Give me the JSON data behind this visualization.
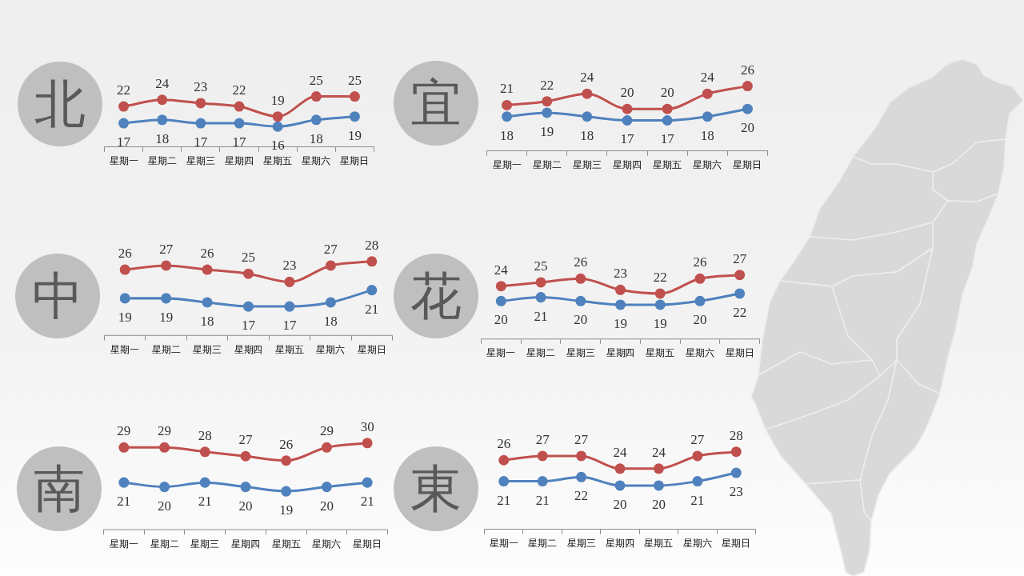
{
  "chart_data": [
    {
      "type": "line",
      "title": "北",
      "categories": [
        "星期一",
        "星期二",
        "星期三",
        "星期四",
        "星期五",
        "星期六",
        "星期日"
      ],
      "series": [
        {
          "color": "#c0504d",
          "values": [
            22,
            24,
            23,
            22,
            19,
            25,
            25
          ]
        },
        {
          "color": "#4f81bd",
          "values": [
            17,
            18,
            17,
            17,
            16,
            18,
            19
          ]
        }
      ],
      "tick_labels": "x",
      "marker": "circle",
      "line_style": "solid",
      "data_labels": true
    },
    {
      "type": "line",
      "title": "宜",
      "categories": [
        "星期一",
        "星期二",
        "星期三",
        "星期四",
        "星期五",
        "星期六",
        "星期日"
      ],
      "series": [
        {
          "color": "#c0504d",
          "values": [
            21,
            22,
            24,
            20,
            20,
            24,
            26
          ]
        },
        {
          "color": "#4f81bd",
          "values": [
            18,
            19,
            18,
            17,
            17,
            18,
            20
          ]
        }
      ],
      "tick_labels": "x",
      "marker": "circle",
      "line_style": "solid",
      "data_labels": true
    },
    {
      "type": "line",
      "title": "中",
      "categories": [
        "星期一",
        "星期二",
        "星期三",
        "星期四",
        "星期五",
        "星期六",
        "星期日"
      ],
      "series": [
        {
          "color": "#c0504d",
          "values": [
            26,
            27,
            26,
            25,
            23,
            27,
            28
          ]
        },
        {
          "color": "#4f81bd",
          "values": [
            19,
            19,
            18,
            17,
            17,
            18,
            21
          ]
        }
      ],
      "tick_labels": "x",
      "marker": "circle",
      "line_style": "solid",
      "data_labels": true
    },
    {
      "type": "line",
      "title": "花",
      "categories": [
        "星期一",
        "星期二",
        "星期三",
        "星期四",
        "星期五",
        "星期六",
        "星期日"
      ],
      "series": [
        {
          "color": "#c0504d",
          "values": [
            24,
            25,
            26,
            23,
            22,
            26,
            27
          ]
        },
        {
          "color": "#4f81bd",
          "values": [
            20,
            21,
            20,
            19,
            19,
            20,
            22
          ]
        }
      ],
      "tick_labels": "x",
      "marker": "circle",
      "line_style": "solid",
      "data_labels": true
    },
    {
      "type": "line",
      "title": "南",
      "categories": [
        "星期一",
        "星期二",
        "星期三",
        "星期四",
        "星期五",
        "星期六",
        "星期日"
      ],
      "series": [
        {
          "color": "#c0504d",
          "values": [
            29,
            29,
            28,
            27,
            26,
            29,
            30
          ]
        },
        {
          "color": "#4f81bd",
          "values": [
            21,
            20,
            21,
            20,
            19,
            20,
            21
          ]
        }
      ],
      "tick_labels": "x",
      "marker": "circle",
      "line_style": "solid",
      "data_labels": true
    },
    {
      "type": "line",
      "title": "東",
      "categories": [
        "星期一",
        "星期二",
        "星期三",
        "星期四",
        "星期五",
        "星期六",
        "星期日"
      ],
      "series": [
        {
          "color": "#c0504d",
          "values": [
            26,
            27,
            27,
            24,
            24,
            27,
            28
          ]
        },
        {
          "color": "#4f81bd",
          "values": [
            21,
            21,
            22,
            20,
            20,
            21,
            23
          ]
        }
      ],
      "tick_labels": "x",
      "marker": "circle",
      "line_style": "solid",
      "data_labels": true
    }
  ]
}
